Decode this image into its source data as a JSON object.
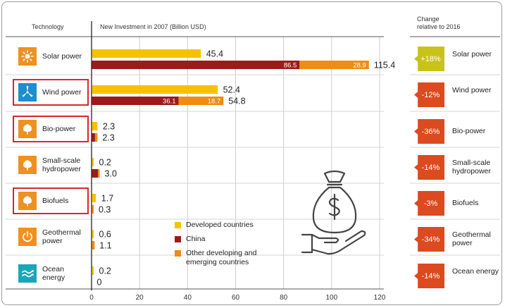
{
  "headers": {
    "technology": "Technology",
    "investment": "New Investment in 2007 (Billion USD)",
    "change": "Change\nrelative to 2016"
  },
  "colors": {
    "developed": "#f6c200",
    "china": "#9b1b1b",
    "other": "#ef8c13",
    "positive_change": "#c9c21a",
    "negative_change": "#dc4a1f",
    "grid": "#cccccc"
  },
  "technologies": [
    {
      "label": "Solar power",
      "icon": "sun-icon",
      "boxed": false,
      "change": "+18%"
    },
    {
      "label": "Wind power",
      "icon": "wind-turbine-icon",
      "boxed": true,
      "change": "-12%"
    },
    {
      "label": "Bio-power",
      "icon": "leaf-icon",
      "boxed": true,
      "change": "-36%"
    },
    {
      "label": "Small-scale hydropower",
      "icon": "leaf-icon",
      "boxed": false,
      "change": "-14%"
    },
    {
      "label": "Biofuels",
      "icon": "leaf-icon",
      "boxed": true,
      "change": "-3%"
    },
    {
      "label": "Geothermal power",
      "icon": "power-icon",
      "boxed": false,
      "change": "-34%"
    },
    {
      "label": "Ocean energy",
      "icon": "wave-icon",
      "boxed": false,
      "change": "-14%"
    }
  ],
  "legend": {
    "developed": "Developed countries",
    "china": "China",
    "other": "Other developing and emerging countries"
  },
  "decoration": {
    "icon": "money-bag-in-hand-icon"
  },
  "chart_data": {
    "type": "bar",
    "orientation": "horizontal",
    "stacked_second_bar": true,
    "xlim": [
      0,
      120
    ],
    "xticks": [
      0,
      20,
      40,
      60,
      80,
      100,
      120
    ],
    "grid": true,
    "legend_position": "bottom-center",
    "categories": [
      "Solar power",
      "Wind power",
      "Bio-power",
      "Small-scale hydropower",
      "Biofuels",
      "Geothermal power",
      "Ocean energy"
    ],
    "series": [
      {
        "name": "Developed countries",
        "values": [
          45.4,
          52.4,
          2.3,
          0.2,
          1.7,
          0.6,
          0.2
        ]
      },
      {
        "name": "China",
        "values": [
          86.5,
          36.1,
          1.3,
          2.5,
          0,
          0,
          0
        ]
      },
      {
        "name": "Other developing and emerging countries",
        "values": [
          28.9,
          18.7,
          1.0,
          0.5,
          0.3,
          1.1,
          0
        ]
      }
    ],
    "developing_totals": [
      115.4,
      54.8,
      2.3,
      3.0,
      0.3,
      1.1,
      0
    ],
    "segment_labels": {
      "china": [
        "86.5",
        "36.1",
        "",
        "",
        "",
        "",
        ""
      ],
      "other": [
        "28.9",
        "18.7",
        "",
        "",
        "",
        "",
        ""
      ]
    },
    "total_labels": {
      "developed": [
        "45.4",
        "52.4",
        "2.3",
        "0.2",
        "1.7",
        "0.6",
        "0.2"
      ],
      "developing": [
        "115.4",
        "54.8",
        "2.3",
        "3.0",
        "0.3",
        "1.1",
        "0"
      ]
    }
  }
}
